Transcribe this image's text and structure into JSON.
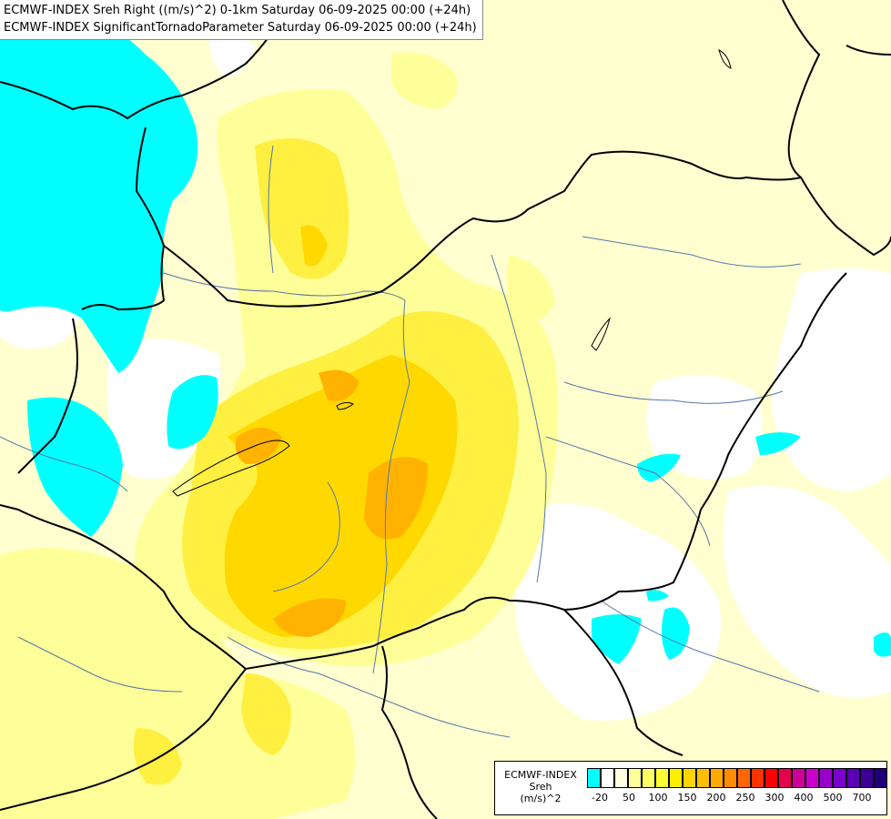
{
  "header": {
    "line1": "ECMWF-INDEX Sreh Right ((m/s)^2) 0-1km Saturday 06-09-2025 00:00 (+24h)",
    "line2": "ECMWF-INDEX SignificantTornadoParameter Saturday 06-09-2025 00:00 (+24h)"
  },
  "legend": {
    "model": "ECMWF-INDEX",
    "variable": "Sreh",
    "unit": "(m/s)^2",
    "ticks": [
      "-20",
      "50",
      "100",
      "150",
      "200",
      "250",
      "300",
      "400",
      "500",
      "700"
    ],
    "colors": [
      "#00ffff",
      "#ffffff",
      "#ffffe0",
      "#ffff99",
      "#ffff66",
      "#ffff33",
      "#ffee00",
      "#ffd400",
      "#ffbf00",
      "#ffaa00",
      "#ff8c00",
      "#ff6600",
      "#ff3300",
      "#ff0000",
      "#e6004c",
      "#cc0099",
      "#cc00cc",
      "#9900cc",
      "#7a00cc",
      "#5a00b3",
      "#3c0099",
      "#1e007a"
    ]
  },
  "map_colors": {
    "cyan": "#00ffff",
    "very_light": "#ffffd0",
    "pale_yellow": "#ffff99",
    "yellow": "#ffef40",
    "deep_yellow": "#ffd800",
    "orange": "#ffb300",
    "border": "#000000",
    "river": "#5577aa"
  }
}
